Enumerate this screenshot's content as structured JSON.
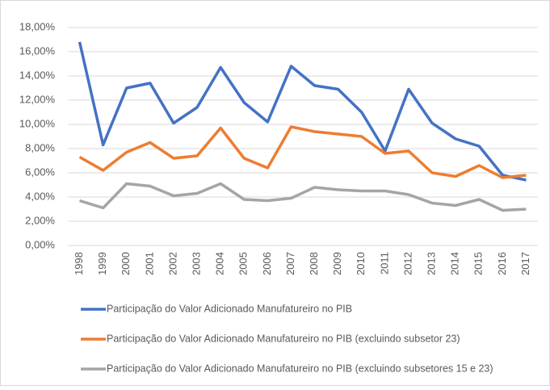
{
  "chart_data": {
    "type": "line",
    "categories": [
      "1998",
      "1999",
      "2000",
      "2001",
      "2002",
      "2003",
      "2004",
      "2005",
      "2006",
      "2007",
      "2008",
      "2009",
      "2010",
      "2011",
      "2012",
      "2013",
      "2014",
      "2015",
      "2016",
      "2017"
    ],
    "series": [
      {
        "name": "Participação do Valor Adicionado Manufatureiro no PIB",
        "color": "#4472c4",
        "values": [
          16.8,
          8.3,
          13.0,
          13.4,
          10.1,
          11.4,
          14.7,
          11.8,
          10.2,
          14.8,
          13.2,
          12.9,
          11.0,
          7.8,
          12.9,
          10.1,
          8.8,
          8.2,
          5.8,
          5.4
        ]
      },
      {
        "name": "Participação do Valor Adicionado Manufatureiro no PIB (excluindo subsetor 23)",
        "color": "#ed7d31",
        "values": [
          7.3,
          6.2,
          7.7,
          8.5,
          7.2,
          7.4,
          9.7,
          7.2,
          6.4,
          9.8,
          9.4,
          9.2,
          9.0,
          7.6,
          7.8,
          6.0,
          5.7,
          6.6,
          5.6,
          5.8
        ]
      },
      {
        "name": "Participação do Valor Adicionado Manufatureiro no PIB (excluindo subsetores 15 e 23)",
        "color": "#a5a5a5",
        "values": [
          3.7,
          3.1,
          5.1,
          4.9,
          4.1,
          4.3,
          5.1,
          3.8,
          3.7,
          3.9,
          4.8,
          4.6,
          4.5,
          4.5,
          4.2,
          3.5,
          3.3,
          3.8,
          2.9,
          3.0
        ]
      }
    ],
    "ylim": [
      0,
      18
    ],
    "yticks": [
      {
        "value": 0,
        "label": "0,00%"
      },
      {
        "value": 2,
        "label": "2,00%"
      },
      {
        "value": 4,
        "label": "4,00%"
      },
      {
        "value": 6,
        "label": "6,00%"
      },
      {
        "value": 8,
        "label": "8,00%"
      },
      {
        "value": 10,
        "label": "10,00%"
      },
      {
        "value": 12,
        "label": "12,00%"
      },
      {
        "value": 14,
        "label": "14,00%"
      },
      {
        "value": 16,
        "label": "16,00%"
      },
      {
        "value": 18,
        "label": "18,00%"
      }
    ],
    "grid": true
  }
}
